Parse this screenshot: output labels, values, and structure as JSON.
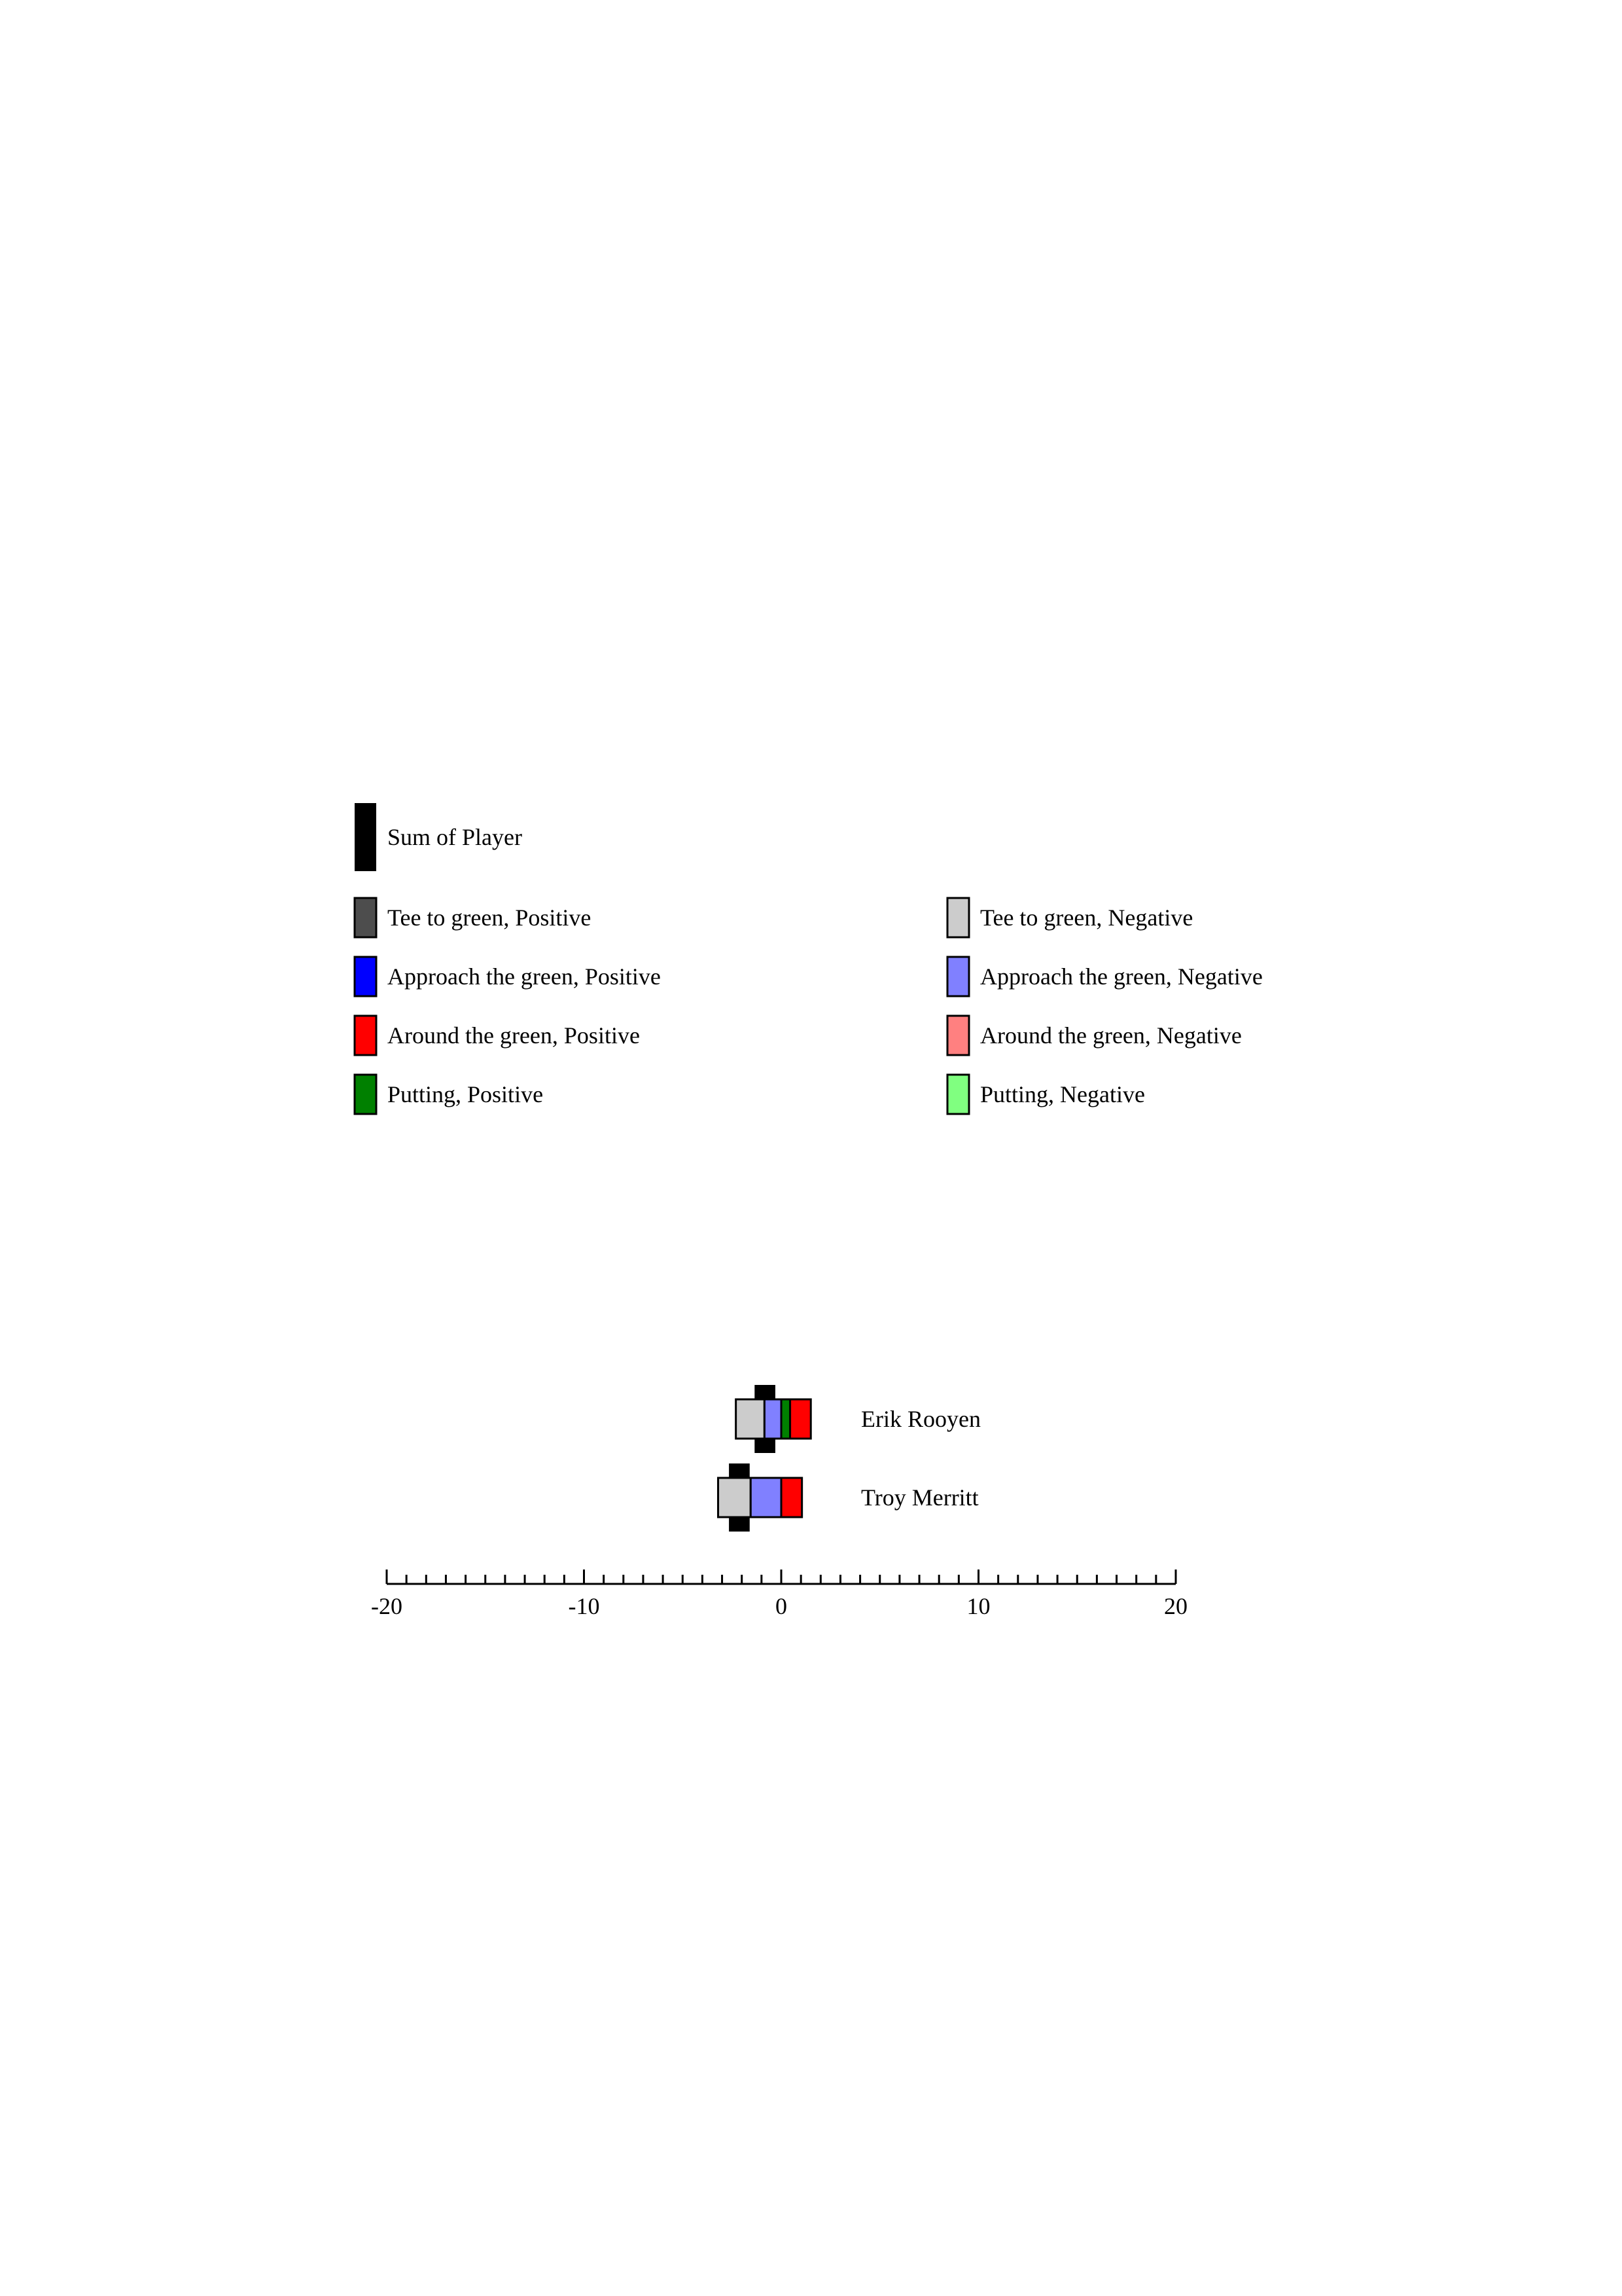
{
  "chart_data": {
    "type": "bar",
    "orientation": "horizontal",
    "stacked": true,
    "legend": {
      "sum_label": "Sum of Player",
      "items": [
        {
          "key": "t2g_pos",
          "label": "Tee to green, Positive",
          "color": "#4d4d4d"
        },
        {
          "key": "t2g_neg",
          "label": "Tee to green, Negative",
          "color": "#cccccc"
        },
        {
          "key": "app_pos",
          "label": "Approach the green, Positive",
          "color": "#0000ff"
        },
        {
          "key": "app_neg",
          "label": "Approach the green, Negative",
          "color": "#8080ff"
        },
        {
          "key": "arg_pos",
          "label": "Around the green, Positive",
          "color": "#ff0000"
        },
        {
          "key": "arg_neg",
          "label": "Around the green, Negative",
          "color": "#ff8080"
        },
        {
          "key": "putt_pos",
          "label": "Putting, Positive",
          "color": "#008000"
        },
        {
          "key": "putt_neg",
          "label": "Putting, Negative",
          "color": "#80ff80"
        }
      ]
    },
    "sum_color": "#000000",
    "players": [
      {
        "name": "Erik Rooyen",
        "segments": [
          {
            "key": "t2g_neg",
            "start": -2.3,
            "end": -0.85
          },
          {
            "key": "app_neg",
            "start": -0.85,
            "end": 0.0
          },
          {
            "key": "putt_pos",
            "start": 0.0,
            "end": 0.45
          },
          {
            "key": "arg_pos",
            "start": 0.45,
            "end": 1.5
          }
        ],
        "sum": {
          "start": -1.35,
          "end": -0.3
        }
      },
      {
        "name": "Troy Merritt",
        "segments": [
          {
            "key": "t2g_neg",
            "start": -3.2,
            "end": -1.55
          },
          {
            "key": "app_neg",
            "start": -1.55,
            "end": 0.0
          },
          {
            "key": "arg_pos",
            "start": 0.0,
            "end": 1.05
          }
        ],
        "sum": {
          "start": -2.65,
          "end": -1.6
        }
      }
    ],
    "xlim": [
      -20,
      20
    ],
    "major_ticks": [
      -20,
      -10,
      0,
      10,
      20
    ],
    "tick_labels": [
      "-20",
      "-10",
      "0",
      "10",
      "20"
    ],
    "minor_tick_step": 1,
    "grid": false,
    "legend_position": "top"
  }
}
